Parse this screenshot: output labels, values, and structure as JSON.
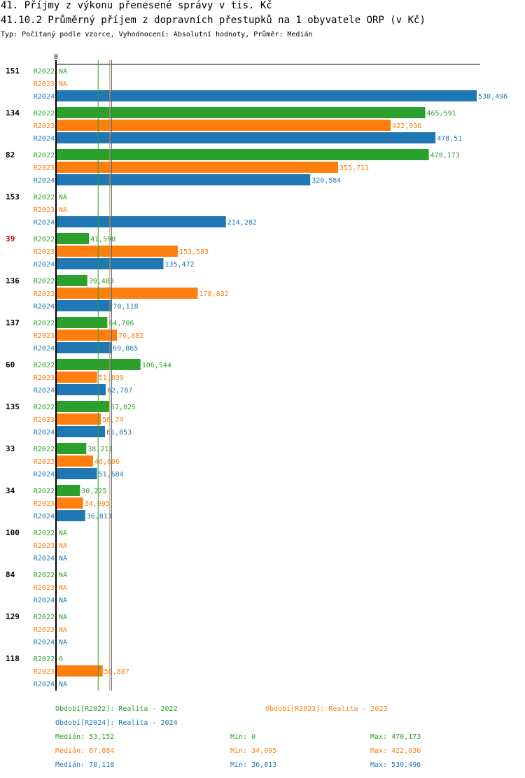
{
  "header": {
    "title": "41. Příjmy z výkonu přenesené správy v tis. Kč",
    "subtitle": "41.10.2 Průměrný příjem z dopravních přestupků na 1 obyvatele ORP (v Kč)",
    "type_line": "Typ: Počítaný podle vzorce, Vyhodnocení: Absolutní hodnoty, Průměr: Medián"
  },
  "colors": {
    "R2022": "#2ca02c",
    "R2023": "#ff7f0e",
    "R2024": "#1f77b4",
    "highlight": "#cc0000"
  },
  "chart_data": {
    "type": "bar",
    "orientation": "horizontal",
    "x_axis_zero_label": "0",
    "xlim": [
      0,
      530.496
    ],
    "series_names": [
      "R2022",
      "R2023",
      "R2024"
    ],
    "na_label": "NA",
    "groups": [
      {
        "label": "151",
        "highlight": false,
        "values": [
          null,
          null,
          530.496
        ],
        "labels": [
          "NA",
          "NA",
          "530,496"
        ]
      },
      {
        "label": "134",
        "highlight": false,
        "values": [
          465.591,
          422.036,
          478.51
        ],
        "labels": [
          "465,591",
          "422,036",
          "478,51"
        ]
      },
      {
        "label": "82",
        "highlight": false,
        "values": [
          470.173,
          355.711,
          320.584
        ],
        "labels": [
          "470,173",
          "355,711",
          "320,584"
        ]
      },
      {
        "label": "153",
        "highlight": false,
        "values": [
          null,
          null,
          214.282
        ],
        "labels": [
          "NA",
          "NA",
          "214,282"
        ]
      },
      {
        "label": "39",
        "highlight": true,
        "values": [
          41.598,
          153.583,
          135.472
        ],
        "labels": [
          "41,598",
          "153,583",
          "135,472"
        ]
      },
      {
        "label": "136",
        "highlight": false,
        "values": [
          39.483,
          178.832,
          70.118
        ],
        "labels": [
          "39,483",
          "178,832",
          "70,118"
        ]
      },
      {
        "label": "137",
        "highlight": false,
        "values": [
          64.706,
          76.882,
          69.865
        ],
        "labels": [
          "64,706",
          "76,882",
          "69,865"
        ]
      },
      {
        "label": "60",
        "highlight": false,
        "values": [
          106.544,
          51.839,
          62.787
        ],
        "labels": [
          "106,544",
          "51,839",
          "62,787"
        ]
      },
      {
        "label": "135",
        "highlight": false,
        "values": [
          67.025,
          56.74,
          61.853
        ],
        "labels": [
          "67,025",
          "56,74",
          "61,853"
        ]
      },
      {
        "label": "33",
        "highlight": false,
        "values": [
          38.211,
          46.696,
          51.684
        ],
        "labels": [
          "38,211",
          "46,696",
          "51,684"
        ]
      },
      {
        "label": "34",
        "highlight": false,
        "values": [
          30.225,
          34.095,
          36.813
        ],
        "labels": [
          "30,225",
          "34,095",
          "36,813"
        ]
      },
      {
        "label": "100",
        "highlight": false,
        "values": [
          null,
          null,
          null
        ],
        "labels": [
          "NA",
          "NA",
          "NA"
        ]
      },
      {
        "label": "84",
        "highlight": false,
        "values": [
          null,
          null,
          null
        ],
        "labels": [
          "NA",
          "NA",
          "NA"
        ]
      },
      {
        "label": "129",
        "highlight": false,
        "values": [
          null,
          null,
          null
        ],
        "labels": [
          "NA",
          "NA",
          "NA"
        ]
      },
      {
        "label": "118",
        "highlight": false,
        "values": [
          0,
          58.887,
          null
        ],
        "labels": [
          "0",
          "58,887",
          "NA"
        ]
      }
    ],
    "median_lines": [
      {
        "series": "R2022",
        "value": 53.152
      },
      {
        "series": "R2023",
        "value": 67.884
      },
      {
        "series": "R2024",
        "value": 70.118
      }
    ]
  },
  "legend": {
    "periods": [
      {
        "series": "R2022",
        "text": "Období[R2022]: Realita - 2022"
      },
      {
        "series": "R2023",
        "text": "Období[R2023]: Realita - 2023"
      },
      {
        "series": "R2024",
        "text": "Období[R2024]: Realita - 2024"
      }
    ],
    "stats": [
      {
        "series": "R2022",
        "median": "Medián: 53,152",
        "min": "Min: 0",
        "max": "Max: 470,173"
      },
      {
        "series": "R2023",
        "median": "Medián: 67,884",
        "min": "Min: 34,095",
        "max": "Max: 422,036"
      },
      {
        "series": "R2024",
        "median": "Medián: 70,118",
        "min": "Min: 36,813",
        "max": "Max: 530,496"
      }
    ]
  }
}
